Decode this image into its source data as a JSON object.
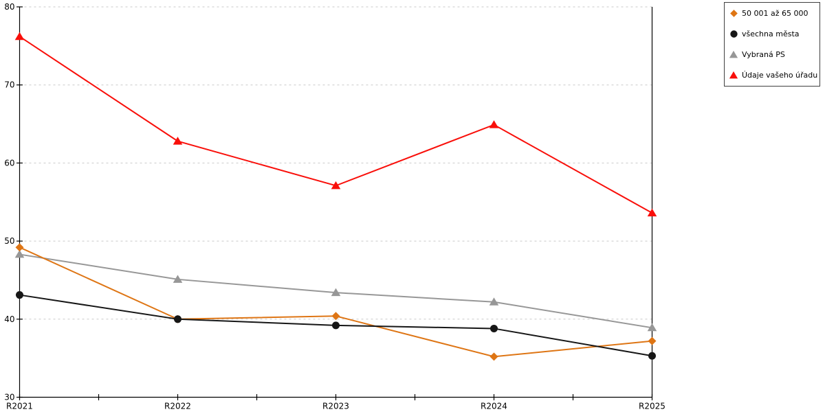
{
  "chart_data": {
    "type": "line",
    "title": "",
    "xlabel": "",
    "ylabel": "",
    "categories": [
      "R2021",
      "R2022",
      "R2023",
      "R2024",
      "R2025"
    ],
    "series": [
      {
        "name": "50 001 až 65 000",
        "marker": "diamond",
        "color": "#DE7514",
        "values": [
          49.2,
          40.0,
          40.4,
          35.2,
          37.2
        ]
      },
      {
        "name": "všechna města",
        "marker": "circle",
        "color": "#161616",
        "values": [
          43.1,
          40.0,
          39.2,
          38.8,
          35.3
        ]
      },
      {
        "name": "Vybraná PS",
        "marker": "triangle",
        "color": "#979797",
        "values": [
          48.3,
          45.1,
          43.4,
          42.2,
          38.9
        ]
      },
      {
        "name": "Údaje vašeho úřadu",
        "marker": "triangle",
        "color": "#F90F0A",
        "values": [
          76.2,
          62.8,
          57.1,
          64.9,
          53.6
        ]
      }
    ],
    "ylim": [
      30,
      80
    ],
    "y_ticks": [
      30,
      40,
      50,
      60,
      70,
      80
    ],
    "grid": "horizontal-dashed",
    "legend_position": "top-right"
  },
  "colors": {
    "grid": "#C9C9C9",
    "axis": "#000000",
    "tick_label": "#000000",
    "legend_border": "#3E3E3E",
    "background": "#FFFFFF"
  }
}
